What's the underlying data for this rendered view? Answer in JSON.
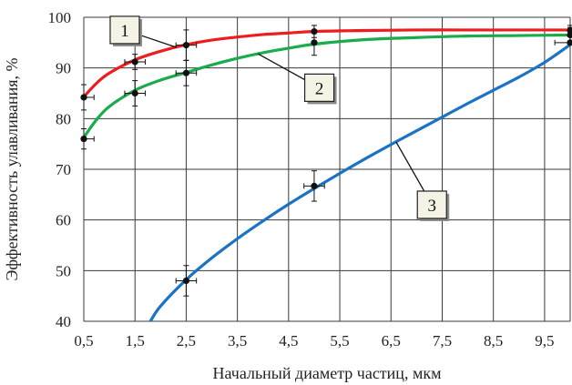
{
  "chart_data": {
    "type": "line",
    "title": "",
    "xlabel": "Начальный диаметр частиц, мкм",
    "ylabel": "Эффективность улавливания, %",
    "xlim": [
      0.5,
      10
    ],
    "ylim": [
      40,
      100
    ],
    "xticks": [
      "0,5",
      "1,5",
      "2,5",
      "3,5",
      "4,5",
      "5,5",
      "6,5",
      "7,5",
      "8,5",
      "9,5"
    ],
    "xtick_values": [
      0.5,
      1.5,
      2.5,
      3.5,
      4.5,
      5.5,
      6.5,
      7.5,
      8.5,
      9.5
    ],
    "yticks": [
      "40",
      "50",
      "60",
      "70",
      "80",
      "90",
      "100"
    ],
    "ytick_values": [
      40,
      50,
      60,
      70,
      80,
      90,
      100
    ],
    "grid": true,
    "legend": "none",
    "series": [
      {
        "name": "1",
        "color": "#ee1c1c",
        "curve": [
          [
            0.5,
            84.3
          ],
          [
            0.75,
            87.0
          ],
          [
            1.0,
            89.0
          ],
          [
            1.5,
            91.6
          ],
          [
            2.0,
            93.3
          ],
          [
            2.5,
            94.6
          ],
          [
            3.0,
            95.5
          ],
          [
            3.5,
            96.1
          ],
          [
            4.0,
            96.6
          ],
          [
            4.5,
            96.9
          ],
          [
            5.0,
            97.2
          ],
          [
            6.0,
            97.4
          ],
          [
            7.0,
            97.5
          ],
          [
            8.0,
            97.5
          ],
          [
            9.0,
            97.5
          ],
          [
            10.0,
            97.5
          ]
        ],
        "points": [
          [
            0.5,
            84.2
          ],
          [
            1.5,
            91.2
          ],
          [
            2.5,
            94.5
          ],
          [
            5.0,
            97.2
          ],
          [
            10.0,
            97.4
          ]
        ],
        "yerr": [
          2.5,
          1.5,
          3.0,
          1.2,
          1.0
        ],
        "xerr": [
          0.2,
          0.2,
          0.2,
          0.0,
          0.0
        ]
      },
      {
        "name": "2",
        "color": "#1aab4c",
        "curve": [
          [
            0.5,
            76.3
          ],
          [
            0.75,
            79.8
          ],
          [
            1.0,
            82.4
          ],
          [
            1.5,
            85.6
          ],
          [
            2.0,
            87.6
          ],
          [
            2.5,
            89.1
          ],
          [
            3.0,
            90.6
          ],
          [
            3.5,
            91.9
          ],
          [
            4.0,
            93.0
          ],
          [
            4.5,
            93.9
          ],
          [
            5.0,
            94.7
          ],
          [
            6.0,
            95.6
          ],
          [
            7.0,
            96.0
          ],
          [
            8.0,
            96.3
          ],
          [
            9.0,
            96.4
          ],
          [
            10.0,
            96.5
          ]
        ],
        "points": [
          [
            0.5,
            76.0
          ],
          [
            1.5,
            85.0
          ],
          [
            2.5,
            89.0
          ],
          [
            5.0,
            95.0
          ],
          [
            10.0,
            96.5
          ]
        ],
        "yerr": [
          2.0,
          2.5,
          2.5,
          2.5,
          1.5
        ],
        "xerr": [
          0.2,
          0.2,
          0.2,
          0.0,
          0.0
        ]
      },
      {
        "name": "3",
        "color": "#1a73c4",
        "curve": [
          [
            1.8,
            40.0
          ],
          [
            2.0,
            43.0
          ],
          [
            2.5,
            48.2
          ],
          [
            3.0,
            52.5
          ],
          [
            3.5,
            56.3
          ],
          [
            4.0,
            59.8
          ],
          [
            4.5,
            63.1
          ],
          [
            5.0,
            66.2
          ],
          [
            5.5,
            69.2
          ],
          [
            6.0,
            72.1
          ],
          [
            6.5,
            74.9
          ],
          [
            7.0,
            77.6
          ],
          [
            7.5,
            80.3
          ],
          [
            8.0,
            83.0
          ],
          [
            8.5,
            85.6
          ],
          [
            9.0,
            88.2
          ],
          [
            9.5,
            91.1
          ],
          [
            10.0,
            94.6
          ]
        ],
        "points": [
          [
            2.5,
            48.0
          ],
          [
            5.0,
            66.7
          ],
          [
            10.0,
            95.0
          ]
        ],
        "yerr": [
          3.0,
          3.0,
          0.0
        ],
        "xerr": [
          0.2,
          0.2,
          0.3
        ]
      }
    ],
    "annotations": [
      {
        "text": "1",
        "series": 0,
        "target": [
          2.3,
          94.1
        ],
        "box_at": [
          1.3,
          97.5
        ]
      },
      {
        "text": "2",
        "series": 1,
        "target": [
          3.9,
          92.8
        ],
        "box_at": [
          5.1,
          86.1
        ]
      },
      {
        "text": "3",
        "series": 2,
        "target": [
          6.6,
          75.4
        ],
        "box_at": [
          7.3,
          63.0
        ]
      }
    ]
  }
}
